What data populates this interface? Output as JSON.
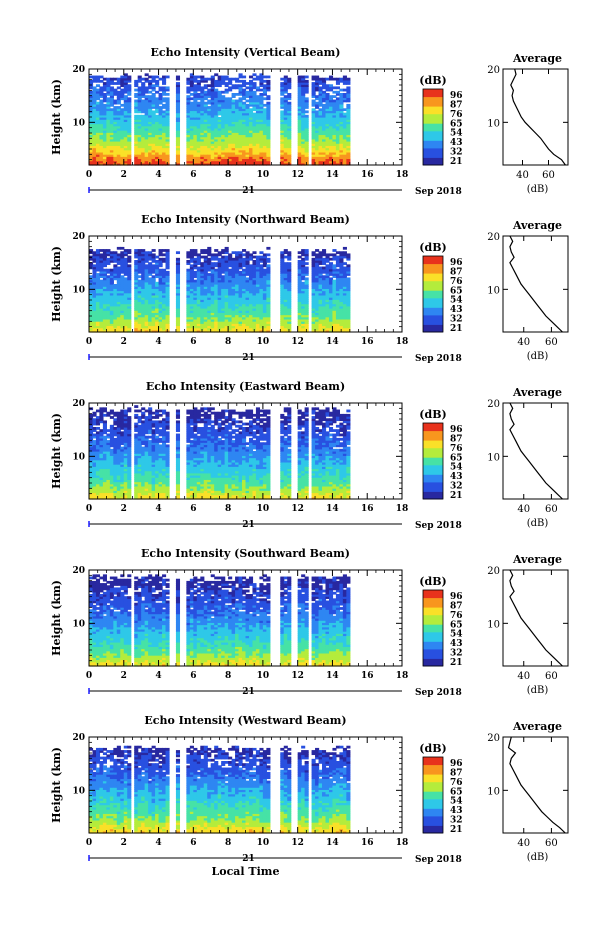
{
  "xaxis_label": "Local Time",
  "day_label": "21",
  "month_label": "Sep 2018",
  "ylabel": "Height (km)",
  "colorbar_unit": "(dB)",
  "colorbar_ticks": [
    "96",
    "87",
    "76",
    "65",
    "54",
    "43",
    "32",
    "21"
  ],
  "avg_title": "Average",
  "avg_xlabel": "(dB)",
  "colors": {
    "scale": [
      "#2828a0",
      "#2850e0",
      "#2e86f2",
      "#2ec8e8",
      "#46e2a6",
      "#b4ec3c",
      "#fae028",
      "#f8961e",
      "#e8321c"
    ]
  },
  "chart_data": [
    {
      "type": "heatmap",
      "title": "Echo Intensity (Vertical Beam)",
      "x_ticks": [
        0,
        2,
        4,
        6,
        8,
        10,
        12,
        14,
        16,
        18
      ],
      "x_range": [
        0,
        18
      ],
      "y_ticks": [
        10,
        20
      ],
      "y_range": [
        2,
        20
      ],
      "data_gaps_hours": [
        [
          2.4,
          2.6
        ],
        [
          4.6,
          5.0
        ],
        [
          5.3,
          5.6
        ],
        [
          10.4,
          11.0
        ],
        [
          11.6,
          12.0
        ],
        [
          12.6,
          12.9
        ],
        [
          15.0,
          18.0
        ]
      ],
      "data_top_km": 18.8,
      "intensity_profile_db": [
        [
          2,
          92
        ],
        [
          3,
          88
        ],
        [
          4,
          80
        ],
        [
          6,
          68
        ],
        [
          8,
          60
        ],
        [
          10,
          52
        ],
        [
          12,
          46
        ],
        [
          14,
          40
        ],
        [
          16,
          36
        ],
        [
          18,
          30
        ]
      ],
      "average_profile": {
        "x_ticks": [
          40,
          60
        ],
        "x_range": [
          25,
          75
        ],
        "y_ticks": [
          10,
          20
        ],
        "height_km": [
          2,
          3,
          4,
          5,
          6,
          7,
          8,
          9,
          10,
          11,
          12,
          13,
          14,
          15,
          16,
          17,
          18,
          19,
          20
        ],
        "db": [
          73,
          70,
          64,
          60,
          57,
          54,
          50,
          46,
          42,
          39,
          37,
          35,
          33,
          32,
          33,
          31,
          33,
          35,
          34
        ]
      }
    },
    {
      "type": "heatmap",
      "title": "Echo Intensity (Northward Beam)",
      "x_ticks": [
        0,
        2,
        4,
        6,
        8,
        10,
        12,
        14,
        16,
        18
      ],
      "x_range": [
        0,
        18
      ],
      "y_ticks": [
        10,
        20
      ],
      "y_range": [
        2,
        20
      ],
      "data_gaps_hours": [
        [
          2.4,
          2.6
        ],
        [
          4.6,
          5.0
        ],
        [
          5.3,
          5.6
        ],
        [
          10.4,
          11.0
        ],
        [
          11.6,
          12.0
        ],
        [
          12.6,
          12.9
        ],
        [
          15.0,
          18.0
        ]
      ],
      "data_top_km": 17.5,
      "intensity_profile_db": [
        [
          2,
          78
        ],
        [
          3,
          72
        ],
        [
          4,
          66
        ],
        [
          6,
          58
        ],
        [
          8,
          52
        ],
        [
          10,
          46
        ],
        [
          12,
          40
        ],
        [
          14,
          34
        ],
        [
          16,
          30
        ],
        [
          17.5,
          26
        ]
      ],
      "average_profile": {
        "x_ticks": [
          40,
          60
        ],
        "x_range": [
          25,
          72
        ],
        "y_ticks": [
          10,
          20
        ],
        "height_km": [
          2,
          3,
          4,
          5,
          6,
          7,
          8,
          9,
          10,
          11,
          12,
          13,
          14,
          15,
          16,
          17,
          18,
          19,
          20
        ],
        "db": [
          68,
          64,
          60,
          56,
          53,
          50,
          47,
          44,
          41,
          38,
          36,
          34,
          32,
          30,
          33,
          31,
          30,
          32,
          30
        ]
      }
    },
    {
      "type": "heatmap",
      "title": "Echo Intensity (Eastward Beam)",
      "x_ticks": [
        0,
        2,
        4,
        6,
        8,
        10,
        12,
        14,
        16,
        18
      ],
      "x_range": [
        0,
        18
      ],
      "y_ticks": [
        10,
        20
      ],
      "y_range": [
        2,
        20
      ],
      "data_gaps_hours": [
        [
          2.4,
          2.6
        ],
        [
          4.6,
          5.0
        ],
        [
          5.3,
          5.6
        ],
        [
          10.4,
          11.0
        ],
        [
          11.6,
          12.0
        ],
        [
          12.6,
          12.9
        ],
        [
          15.0,
          18.0
        ]
      ],
      "data_top_km": 19.0,
      "intensity_profile_db": [
        [
          2,
          76
        ],
        [
          3,
          70
        ],
        [
          4,
          64
        ],
        [
          6,
          56
        ],
        [
          8,
          50
        ],
        [
          10,
          44
        ],
        [
          12,
          38
        ],
        [
          14,
          34
        ],
        [
          16,
          30
        ],
        [
          18,
          26
        ]
      ],
      "average_profile": {
        "x_ticks": [
          40,
          60
        ],
        "x_range": [
          25,
          72
        ],
        "y_ticks": [
          10,
          20
        ],
        "height_km": [
          2,
          3,
          4,
          5,
          6,
          7,
          8,
          9,
          10,
          11,
          12,
          13,
          14,
          15,
          16,
          17,
          18,
          19,
          20
        ],
        "db": [
          68,
          64,
          60,
          56,
          53,
          50,
          47,
          44,
          41,
          38,
          36,
          34,
          32,
          30,
          33,
          31,
          30,
          32,
          30
        ]
      }
    },
    {
      "type": "heatmap",
      "title": "Echo Intensity (Southward Beam)",
      "x_ticks": [
        0,
        2,
        4,
        6,
        8,
        10,
        12,
        14,
        16,
        18
      ],
      "x_range": [
        0,
        18
      ],
      "y_ticks": [
        10,
        20
      ],
      "y_range": [
        2,
        20
      ],
      "data_gaps_hours": [
        [
          2.4,
          2.6
        ],
        [
          4.6,
          5.0
        ],
        [
          5.3,
          5.6
        ],
        [
          10.4,
          11.0
        ],
        [
          11.6,
          12.0
        ],
        [
          12.6,
          12.9
        ],
        [
          15.0,
          18.0
        ]
      ],
      "data_top_km": 19.0,
      "intensity_profile_db": [
        [
          2,
          76
        ],
        [
          3,
          70
        ],
        [
          4,
          64
        ],
        [
          6,
          56
        ],
        [
          8,
          50
        ],
        [
          10,
          44
        ],
        [
          12,
          38
        ],
        [
          14,
          34
        ],
        [
          16,
          30
        ],
        [
          18,
          26
        ]
      ],
      "average_profile": {
        "x_ticks": [
          40,
          60
        ],
        "x_range": [
          25,
          72
        ],
        "y_ticks": [
          10,
          20
        ],
        "height_km": [
          2,
          3,
          4,
          5,
          6,
          7,
          8,
          9,
          10,
          11,
          12,
          13,
          14,
          15,
          16,
          17,
          18,
          19,
          20
        ],
        "db": [
          68,
          64,
          60,
          56,
          53,
          50,
          47,
          44,
          41,
          38,
          36,
          34,
          32,
          30,
          33,
          31,
          30,
          32,
          30
        ]
      }
    },
    {
      "type": "heatmap",
      "title": "Echo Intensity (Westward Beam)",
      "x_ticks": [
        0,
        2,
        4,
        6,
        8,
        10,
        12,
        14,
        16,
        18
      ],
      "x_range": [
        0,
        18
      ],
      "y_ticks": [
        10,
        20
      ],
      "y_range": [
        2,
        20
      ],
      "data_gaps_hours": [
        [
          2.4,
          2.6
        ],
        [
          4.6,
          5.0
        ],
        [
          5.3,
          5.6
        ],
        [
          10.4,
          11.0
        ],
        [
          11.6,
          12.0
        ],
        [
          12.6,
          12.9
        ],
        [
          15.0,
          18.0
        ]
      ],
      "data_top_km": 18.0,
      "intensity_profile_db": [
        [
          2,
          78
        ],
        [
          3,
          72
        ],
        [
          4,
          66
        ],
        [
          6,
          58
        ],
        [
          8,
          52
        ],
        [
          10,
          46
        ],
        [
          12,
          40
        ],
        [
          14,
          34
        ],
        [
          16,
          30
        ],
        [
          18,
          26
        ]
      ],
      "average_profile": {
        "x_ticks": [
          40,
          60
        ],
        "x_range": [
          25,
          72
        ],
        "y_ticks": [
          10,
          20
        ],
        "height_km": [
          2,
          3,
          4,
          5,
          6,
          7,
          8,
          9,
          10,
          11,
          12,
          13,
          14,
          15,
          16,
          17,
          18,
          19,
          20
        ],
        "db": [
          70,
          66,
          61,
          57,
          53,
          50,
          47,
          44,
          41,
          38,
          36,
          34,
          32,
          30,
          31,
          34,
          29,
          30,
          31
        ]
      }
    }
  ]
}
